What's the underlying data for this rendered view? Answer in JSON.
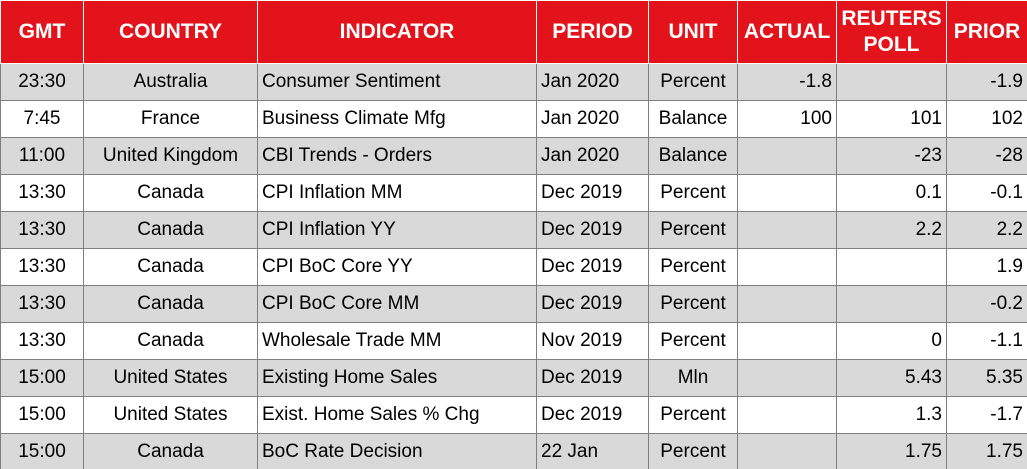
{
  "table": {
    "columns": [
      "GMT",
      "COUNTRY",
      "INDICATOR",
      "PERIOD",
      "UNIT",
      "ACTUAL",
      "REUTERS POLL",
      "PRIOR"
    ],
    "rows": [
      [
        "23:30",
        "Australia",
        "Consumer Sentiment",
        "Jan 2020",
        "Percent",
        "-1.8",
        null,
        "-1.9"
      ],
      [
        "7:45",
        "France",
        "Business Climate Mfg",
        "Jan 2020",
        "Balance",
        "100",
        "101",
        "102"
      ],
      [
        "11:00",
        "United Kingdom",
        "CBI Trends - Orders",
        "Jan 2020",
        "Balance",
        null,
        "-23",
        "-28"
      ],
      [
        "13:30",
        "Canada",
        "CPI Inflation MM",
        "Dec 2019",
        "Percent",
        null,
        "0.1",
        "-0.1"
      ],
      [
        "13:30",
        "Canada",
        "CPI Inflation YY",
        "Dec 2019",
        "Percent",
        null,
        "2.2",
        "2.2"
      ],
      [
        "13:30",
        "Canada",
        "CPI BoC Core YY",
        "Dec 2019",
        "Percent",
        null,
        null,
        "1.9"
      ],
      [
        "13:30",
        "Canada",
        "CPI BoC Core MM",
        "Dec 2019",
        "Percent",
        null,
        null,
        "-0.2"
      ],
      [
        "13:30",
        "Canada",
        "Wholesale Trade MM",
        "Nov 2019",
        "Percent",
        null,
        "0",
        "-1.1"
      ],
      [
        "15:00",
        "United States",
        "Existing Home Sales",
        "Dec 2019",
        "Mln",
        null,
        "5.43",
        "5.35"
      ],
      [
        "15:00",
        "United States",
        "Exist. Home Sales % Chg",
        "Dec 2019",
        "Percent",
        null,
        "1.3",
        "-1.7"
      ],
      [
        "15:00",
        "Canada",
        "BoC Rate Decision",
        "22 Jan",
        "Percent",
        null,
        "1.75",
        "1.75"
      ]
    ]
  }
}
